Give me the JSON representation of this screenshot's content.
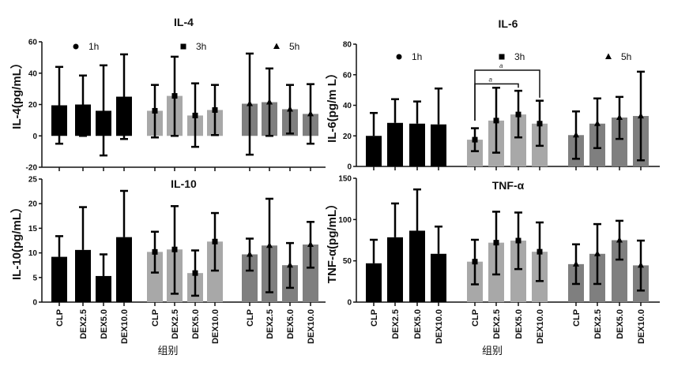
{
  "colors": {
    "1h": "#000000",
    "3h": "#a8a8a8",
    "5h": "#7f7f7f",
    "axis": "#111111"
  },
  "chart_data": [
    {
      "id": "il4",
      "type": "bar",
      "title": "IL-4",
      "ylabel": "IL-4(pg/mL）",
      "xlabel": "",
      "ylim": [
        -20,
        60
      ],
      "yticks": [
        -20,
        0,
        20,
        40,
        60
      ],
      "categories": [
        "CLP",
        "DEX2.5",
        "DEX5.0",
        "DEX10.0"
      ],
      "show_category_labels": false,
      "legend": [
        "1h",
        "3h",
        "5h"
      ],
      "markers": {
        "1h": "circle",
        "3h": "square",
        "5h": "triangle"
      },
      "series": [
        {
          "name": "1h",
          "values": [
            19.5,
            20,
            16,
            25
          ],
          "err_low": [
            -5,
            0,
            -12.5,
            -2
          ],
          "err_high": [
            44,
            38.5,
            45,
            52
          ]
        },
        {
          "name": "3h",
          "values": [
            16,
            25.5,
            13,
            16.5
          ],
          "err_low": [
            -1,
            0,
            -7,
            0.5
          ],
          "err_high": [
            32.5,
            50.5,
            33.5,
            32.5
          ]
        },
        {
          "name": "5h",
          "values": [
            20.5,
            21.5,
            17,
            14
          ],
          "err_low": [
            -12,
            0,
            1.5,
            -5
          ],
          "err_high": [
            52.5,
            43,
            32.5,
            33
          ]
        }
      ],
      "annotations": []
    },
    {
      "id": "il6",
      "type": "bar",
      "title": "IL-6",
      "ylabel": "IL-6(pg/m L）",
      "xlabel": "",
      "ylim": [
        0,
        80
      ],
      "yticks": [
        0,
        20,
        40,
        60,
        80
      ],
      "categories": [
        "CLP",
        "DEX2.5",
        "DEX5.0",
        "DEX10.0"
      ],
      "show_category_labels": false,
      "legend": [
        "1h",
        "3h",
        "5h"
      ],
      "markers": {
        "1h": "circle",
        "3h": "square",
        "5h": "triangle"
      },
      "series": [
        {
          "name": "1h",
          "values": [
            20,
            28.5,
            28,
            27.5
          ],
          "err_low": [
            20,
            28.5,
            28,
            27.5
          ],
          "err_high": [
            35,
            44,
            42.5,
            51
          ]
        },
        {
          "name": "3h",
          "values": [
            17.5,
            30,
            34,
            28
          ],
          "err_low": [
            10,
            9,
            19,
            13.5
          ],
          "err_high": [
            25,
            51.5,
            49.5,
            43
          ]
        },
        {
          "name": "5h",
          "values": [
            20.5,
            28,
            32,
            33
          ],
          "err_low": [
            5,
            12,
            18,
            4
          ],
          "err_high": [
            36,
            44.5,
            45.5,
            62
          ]
        }
      ],
      "annotations": [
        {
          "label": "a",
          "series": "3h",
          "from": "CLP",
          "to": "DEX10.0",
          "level": 63
        },
        {
          "label": "a",
          "series": "3h",
          "from": "CLP",
          "to": "DEX5.0",
          "level": 54
        }
      ]
    },
    {
      "id": "il10",
      "type": "bar",
      "title": "IL-10",
      "ylabel": "IL-10(pg/mL）",
      "xlabel": "组别",
      "ylim": [
        0,
        25
      ],
      "yticks": [
        0,
        5,
        10,
        15,
        20,
        25
      ],
      "categories": [
        "CLP",
        "DEX2.5",
        "DEX5.0",
        "DEX10.0"
      ],
      "show_category_labels": true,
      "legend": [],
      "markers": {
        "1h": "circle",
        "3h": "square",
        "5h": "triangle"
      },
      "series": [
        {
          "name": "1h",
          "values": [
            9.2,
            10.6,
            5.3,
            13.2
          ],
          "err_low": [
            9.2,
            10.6,
            5.3,
            13.2
          ],
          "err_high": [
            13.4,
            19.3,
            9.7,
            22.6
          ]
        },
        {
          "name": "3h",
          "values": [
            10.2,
            10.7,
            5.9,
            12.3
          ],
          "err_low": [
            6,
            1.7,
            1.3,
            6.4
          ],
          "err_high": [
            14.3,
            19.5,
            10.5,
            18.1
          ]
        },
        {
          "name": "5h",
          "values": [
            9.7,
            11.5,
            7.5,
            11.7
          ],
          "err_low": [
            6.4,
            2,
            2.9,
            7
          ],
          "err_high": [
            12.9,
            21,
            12,
            16.3
          ]
        }
      ],
      "annotations": []
    },
    {
      "id": "tnf",
      "type": "bar",
      "title": "TNF-α",
      "ylabel": "TNF-α(pg/mL）",
      "xlabel": "组别",
      "ylim": [
        0,
        150
      ],
      "yticks": [
        0,
        50,
        100,
        150
      ],
      "categories": [
        "CLP",
        "DEX2.5",
        "DEX5.0",
        "DEX10.0"
      ],
      "show_category_labels": true,
      "legend": [],
      "markers": {
        "1h": "circle",
        "3h": "square",
        "5h": "triangle"
      },
      "series": [
        {
          "name": "1h",
          "values": [
            47,
            78.5,
            86.5,
            58.5
          ],
          "err_low": [
            47,
            78.5,
            86.5,
            58.5
          ],
          "err_high": [
            75.5,
            119.5,
            136.5,
            91.5
          ]
        },
        {
          "name": "3h",
          "values": [
            49,
            72,
            74.5,
            61
          ],
          "err_low": [
            21.5,
            33.5,
            40,
            25.5
          ],
          "err_high": [
            75.5,
            109.5,
            108.5,
            96.5
          ]
        },
        {
          "name": "5h",
          "values": [
            46,
            58.5,
            75,
            44.5
          ],
          "err_low": [
            22,
            22,
            51.5,
            14
          ],
          "err_high": [
            70,
            94.5,
            98.5,
            74.5
          ]
        }
      ],
      "annotations": []
    }
  ]
}
